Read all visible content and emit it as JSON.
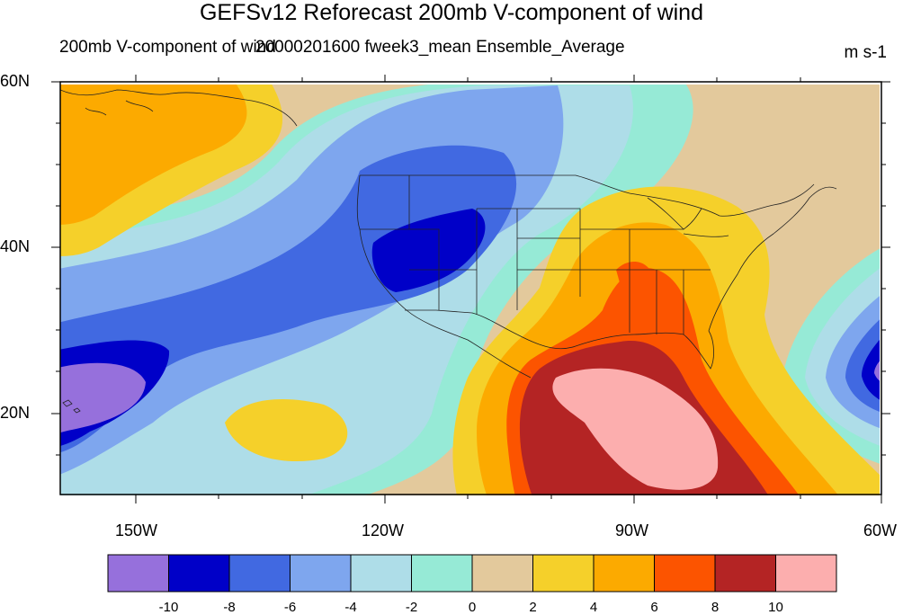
{
  "title": "GEFSv12 Reforecast 200mb V-component of wind",
  "left_string": "200mb V-component of wind",
  "center_string": "20000201600 fweek3_mean Ensemble_Average",
  "units": "m s-1",
  "lat_ticks": [
    "60N",
    "40N",
    "20N"
  ],
  "lon_ticks": [
    "150W",
    "120W",
    "90W",
    "60W"
  ],
  "colorbar": {
    "colors": [
      "#9670dc",
      "#0000c8",
      "#4169e1",
      "#7ea6ee",
      "#aedde8",
      "#96ead6",
      "#e3c99c",
      "#f5d02a",
      "#fcaa00",
      "#fc5400",
      "#b42424",
      "#fcaeae"
    ],
    "labels": [
      "-10",
      "-8",
      "-6",
      "-4",
      "-2",
      "0",
      "2",
      "4",
      "6",
      "8",
      "10"
    ]
  }
}
